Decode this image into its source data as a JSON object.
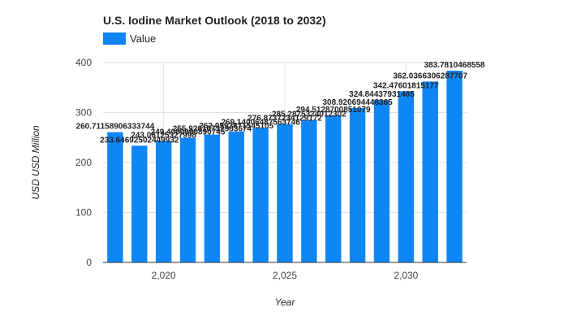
{
  "chart_data": {
    "type": "bar",
    "title": "U.S. Iodine Market Outlook (2018 to 2032)",
    "xlabel": "Year",
    "ylabel": "USD USD Million",
    "legend": {
      "position": "top-left",
      "entries": [
        "Value"
      ]
    },
    "color": "#0f86f5",
    "grid": true,
    "ylim": [
      0,
      400
    ],
    "yticks": [
      "0",
      "100",
      "200",
      "300",
      "400"
    ],
    "x": [
      2018,
      2019,
      2020,
      2021,
      2022,
      2023,
      2024,
      2025,
      2026,
      2027,
      2028,
      2029,
      2030,
      2031,
      2032
    ],
    "xticks": [
      {
        "value": 2020,
        "label": "2,020"
      },
      {
        "value": 2025,
        "label": "2,025"
      },
      {
        "value": 2030,
        "label": "2,030"
      }
    ],
    "series": [
      {
        "name": "Value",
        "values": [
          260.71158906333744,
          233.64692502449932,
          243.06125327998,
          249.4080990890745,
          255.92610732983675,
          262.0592871545105,
          269.14006487563745,
          276.8737234129172,
          285.2875324012302,
          294.5128700851079,
          308.920694448365,
          324.84437931485,
          342.47601815177,
          362.0366306287707,
          383.7810468558
        ]
      }
    ],
    "data_labels": [
      "260.71158906333744",
      "233.64692502449932",
      "243.06125327998",
      "249.4080990890745",
      "255.92610732983674",
      "262.0592871545105",
      "269.14006487563746",
      "276.8737234129172",
      "285.2875324012302",
      "294.5128700851079",
      "308.920694448365",
      "324.84437931485",
      "342.47601815177",
      "362.0366306287707",
      "383.7810468558"
    ]
  }
}
